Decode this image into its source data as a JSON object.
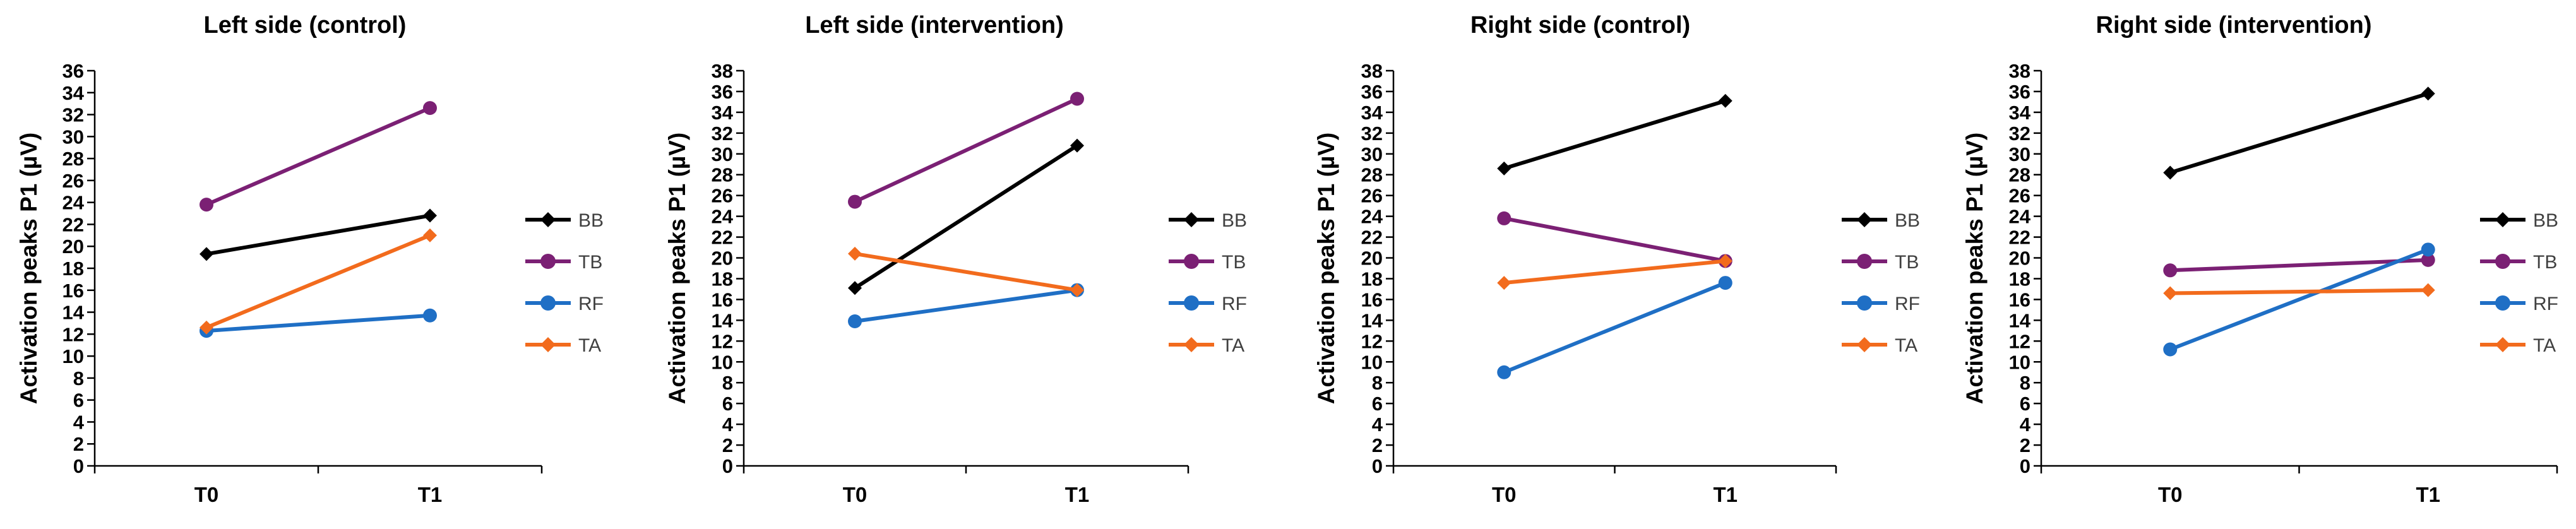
{
  "chart_data": [
    {
      "type": "line",
      "title": "Left side (control)",
      "xlabel": "",
      "ylabel": "Activation peaks P1 (µV)",
      "categories": [
        "T0",
        "T1"
      ],
      "ylim": [
        0,
        36
      ],
      "yticks": [
        0,
        2,
        4,
        6,
        8,
        10,
        12,
        14,
        16,
        18,
        20,
        22,
        24,
        26,
        28,
        30,
        32,
        34,
        36
      ],
      "grid": false,
      "legend": "right",
      "series": [
        {
          "name": "BB",
          "values": [
            19.3,
            22.8
          ],
          "color": "#000000",
          "marker": "diamond"
        },
        {
          "name": "TB",
          "values": [
            23.8,
            32.6
          ],
          "color": "#7b2074",
          "marker": "circle"
        },
        {
          "name": "RF",
          "values": [
            12.3,
            13.7
          ],
          "color": "#1f6fc5",
          "marker": "circle"
        },
        {
          "name": "TA",
          "values": [
            12.6,
            21.0
          ],
          "color": "#f26b1d",
          "marker": "diamond"
        }
      ]
    },
    {
      "type": "line",
      "title": "Left side (intervention)",
      "xlabel": "",
      "ylabel": "Activation peaks P1 (µV)",
      "categories": [
        "T0",
        "T1"
      ],
      "ylim": [
        0,
        38
      ],
      "yticks": [
        0,
        2,
        4,
        6,
        8,
        10,
        12,
        14,
        16,
        18,
        20,
        22,
        24,
        26,
        28,
        30,
        32,
        34,
        36,
        38
      ],
      "grid": false,
      "legend": "right",
      "series": [
        {
          "name": "BB",
          "values": [
            17.1,
            30.8
          ],
          "color": "#000000",
          "marker": "diamond"
        },
        {
          "name": "TB",
          "values": [
            25.4,
            35.3
          ],
          "color": "#7b2074",
          "marker": "circle"
        },
        {
          "name": "RF",
          "values": [
            13.9,
            16.9
          ],
          "color": "#1f6fc5",
          "marker": "circle"
        },
        {
          "name": "TA",
          "values": [
            20.4,
            16.9
          ],
          "color": "#f26b1d",
          "marker": "diamond"
        }
      ]
    },
    {
      "type": "line",
      "title": "Right side (control)",
      "xlabel": "",
      "ylabel": "Activation peaks P1 (µV)",
      "categories": [
        "T0",
        "T1"
      ],
      "ylim": [
        0,
        38
      ],
      "yticks": [
        0,
        2,
        4,
        6,
        8,
        10,
        12,
        14,
        16,
        18,
        20,
        22,
        24,
        26,
        28,
        30,
        32,
        34,
        36,
        38
      ],
      "grid": false,
      "legend": "right",
      "series": [
        {
          "name": "BB",
          "values": [
            28.6,
            35.1
          ],
          "color": "#000000",
          "marker": "diamond"
        },
        {
          "name": "TB",
          "values": [
            23.8,
            19.7
          ],
          "color": "#7b2074",
          "marker": "circle"
        },
        {
          "name": "RF",
          "values": [
            9.0,
            17.6
          ],
          "color": "#1f6fc5",
          "marker": "circle"
        },
        {
          "name": "TA",
          "values": [
            17.6,
            19.7
          ],
          "color": "#f26b1d",
          "marker": "diamond"
        }
      ]
    },
    {
      "type": "line",
      "title": "Right side (intervention)",
      "xlabel": "",
      "ylabel": "Activation peaks P1 (µV)",
      "categories": [
        "T0",
        "T1"
      ],
      "ylim": [
        0,
        38
      ],
      "yticks": [
        0,
        2,
        4,
        6,
        8,
        10,
        12,
        14,
        16,
        18,
        20,
        22,
        24,
        26,
        28,
        30,
        32,
        34,
        36,
        38
      ],
      "grid": false,
      "legend": "right",
      "series": [
        {
          "name": "BB",
          "values": [
            28.2,
            35.8
          ],
          "color": "#000000",
          "marker": "diamond"
        },
        {
          "name": "TB",
          "values": [
            18.8,
            19.8
          ],
          "color": "#7b2074",
          "marker": "circle"
        },
        {
          "name": "RF",
          "values": [
            11.2,
            20.8
          ],
          "color": "#1f6fc5",
          "marker": "circle"
        },
        {
          "name": "TA",
          "values": [
            16.6,
            16.9
          ],
          "color": "#f26b1d",
          "marker": "diamond"
        }
      ]
    }
  ]
}
